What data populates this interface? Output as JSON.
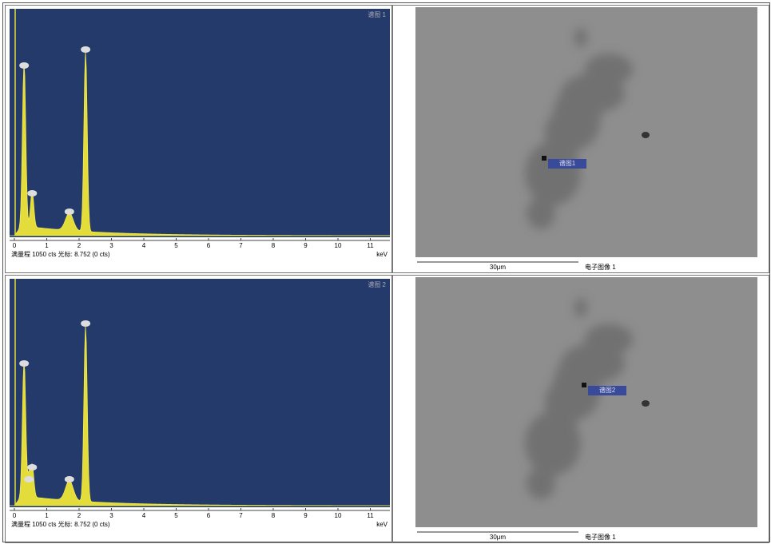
{
  "panels": [
    {
      "spectrum": {
        "corner_label": "谱图 1",
        "x_ticks": [
          "0",
          "1",
          "2",
          "3",
          "4",
          "5",
          "6",
          "7",
          "8",
          "9",
          "10",
          "11"
        ],
        "x_unit": "keV",
        "footer": "满量程 1050 cts 光标: 8.752 (0 cts)"
      },
      "image": {
        "marker_label": "谱图1",
        "scale_label": "30μm",
        "caption": "电子图像 1"
      }
    },
    {
      "spectrum": {
        "corner_label": "谱图 2",
        "x_ticks": [
          "0",
          "1",
          "2",
          "3",
          "4",
          "5",
          "6",
          "7",
          "8",
          "9",
          "10",
          "11"
        ],
        "x_unit": "keV",
        "footer": "满量程 1050 cts 光标: 8.752 (0 cts)"
      },
      "image": {
        "marker_label": "谱图2",
        "scale_label": "30μm",
        "caption": "电子图像 1"
      }
    }
  ]
}
